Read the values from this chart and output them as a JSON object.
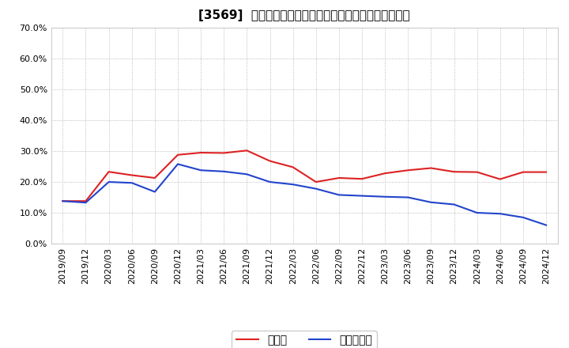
{
  "title": "[3569]  現預金、有利子負債の総資産に対する比率の推移",
  "x_labels": [
    "2019/09",
    "2019/12",
    "2020/03",
    "2020/06",
    "2020/09",
    "2020/12",
    "2021/03",
    "2021/06",
    "2021/09",
    "2021/12",
    "2022/03",
    "2022/06",
    "2022/09",
    "2022/12",
    "2023/03",
    "2023/06",
    "2023/09",
    "2023/12",
    "2024/03",
    "2024/06",
    "2024/09",
    "2024/12"
  ],
  "cash": [
    0.138,
    0.138,
    0.233,
    0.222,
    0.213,
    0.288,
    0.295,
    0.294,
    0.302,
    0.268,
    0.248,
    0.2,
    0.213,
    0.21,
    0.228,
    0.238,
    0.245,
    0.233,
    0.232,
    0.209,
    0.232,
    0.232
  ],
  "debt": [
    0.138,
    0.133,
    0.2,
    0.197,
    0.168,
    0.258,
    0.238,
    0.234,
    0.225,
    0.2,
    0.192,
    0.178,
    0.158,
    0.155,
    0.152,
    0.15,
    0.134,
    0.127,
    0.1,
    0.097,
    0.085,
    0.06
  ],
  "cash_color": "#dd2222",
  "debt_color": "#2244cc",
  "legend_cash": "現預金",
  "legend_debt": "有利子負債",
  "ylim": [
    0.0,
    0.7
  ],
  "yticks": [
    0.0,
    0.1,
    0.2,
    0.3,
    0.4,
    0.5,
    0.6,
    0.7
  ],
  "bg_color": "#ffffff",
  "grid_color": "#aaaaaa",
  "title_fontsize": 11,
  "axis_fontsize": 8,
  "legend_fontsize": 10
}
